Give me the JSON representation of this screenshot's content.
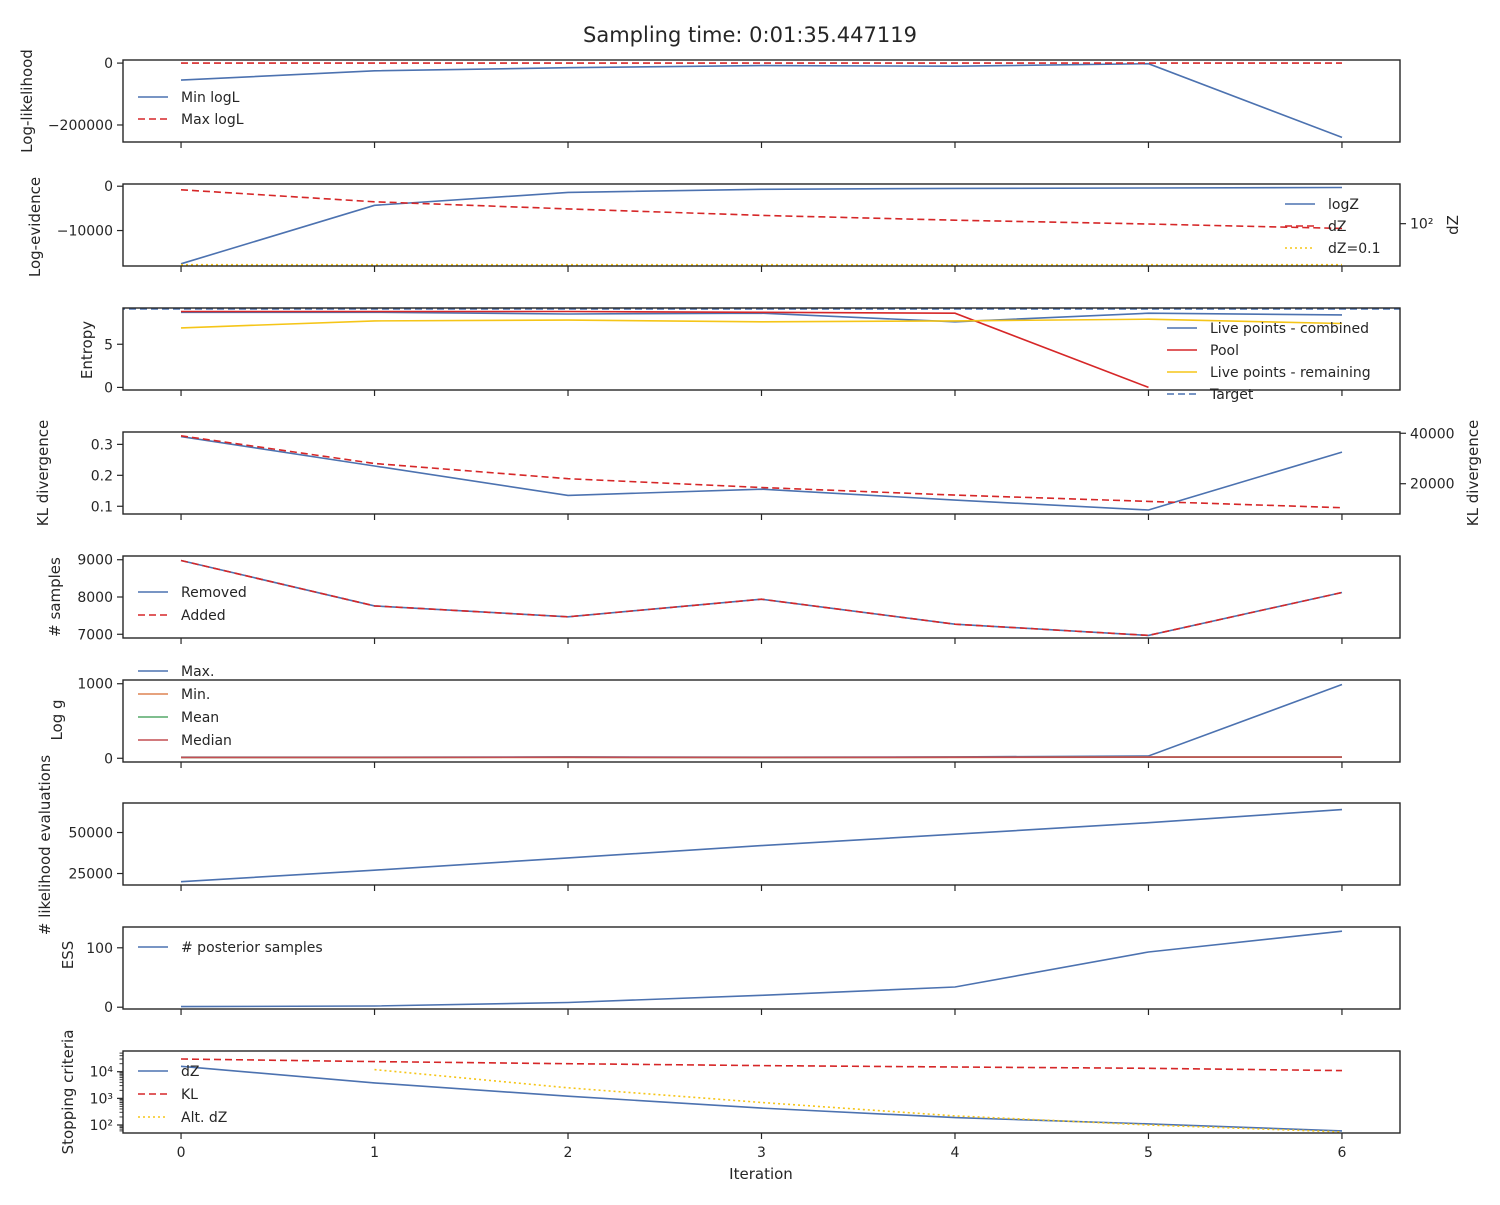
{
  "title": "Sampling time: 0:01:35.447119",
  "colors": {
    "blue": "#4c72b0",
    "red": "#d62728",
    "gold": "#f5c518",
    "orange": "#dd8452",
    "green": "#55a868",
    "crimson": "#c44e52",
    "axes": "#262626",
    "background": "#ffffff"
  },
  "x_axis": {
    "label": "Iteration",
    "ticks": [
      0,
      1,
      2,
      3,
      4,
      5,
      6
    ],
    "range": [
      -0.3,
      6.3
    ]
  },
  "chart_data": [
    {
      "type": "line",
      "ylabel": "Log-likelihood",
      "ylim": [
        -255000,
        10000
      ],
      "yticks": [
        0,
        -200000
      ],
      "ytick_labels": [
        "0",
        "−200000"
      ],
      "x": [
        0,
        1,
        2,
        3,
        4,
        5,
        6
      ],
      "series": [
        {
          "name": "Min logL",
          "values": [
            -55000,
            -25000,
            -15000,
            -8000,
            -10000,
            -2000,
            -240000
          ],
          "color": "blue",
          "dash": "solid"
        },
        {
          "name": "Max logL",
          "values": [
            0,
            0,
            0,
            0,
            0,
            0,
            0
          ],
          "color": "red",
          "dash": "dashed"
        }
      ],
      "legend": "left"
    },
    {
      "type": "line",
      "ylabel": "Log-evidence",
      "ylim": [
        -18000,
        500
      ],
      "yticks": [
        0,
        -10000
      ],
      "ytick_labels": [
        "0",
        "−10000"
      ],
      "y2label": "dZ",
      "y2_scale": "log",
      "y2ticks": [
        100
      ],
      "y2tick_labels": [
        "10²"
      ],
      "x": [
        0,
        1,
        2,
        3,
        4,
        5,
        6
      ],
      "series": [
        {
          "name": "logZ",
          "values": [
            -17500,
            -4300,
            -1400,
            -700,
            -500,
            -400,
            -300
          ],
          "color": "blue",
          "dash": "solid",
          "axis": "left"
        },
        {
          "name": "dZ",
          "values": [
            30000,
            4000,
            1200,
            400,
            180,
            95,
            45
          ],
          "color": "red",
          "dash": "dashed",
          "axis": "right"
        },
        {
          "name": "dZ=0.1",
          "values": [
            0.1,
            0.1,
            0.1,
            0.1,
            0.1,
            0.1,
            0.1
          ],
          "color": "gold",
          "dash": "dotted",
          "axis": "right"
        }
      ],
      "legend": "right"
    },
    {
      "type": "line",
      "ylabel": "Entropy",
      "ylim": [
        -0.3,
        9.2
      ],
      "yticks": [
        0,
        5
      ],
      "ytick_labels": [
        "0",
        "5"
      ],
      "x": [
        0,
        1,
        2,
        3,
        4,
        5,
        6
      ],
      "series": [
        {
          "name": "Live points - combined",
          "values": [
            8.7,
            8.7,
            8.5,
            8.6,
            7.6,
            8.6,
            8.4
          ],
          "color": "blue",
          "dash": "solid"
        },
        {
          "name": "Pool",
          "values": [
            8.8,
            8.8,
            8.8,
            8.7,
            8.6,
            0.0,
            null
          ],
          "color": "red",
          "dash": "solid"
        },
        {
          "name": "Live points - remaining",
          "values": [
            6.9,
            7.7,
            7.8,
            7.6,
            7.7,
            7.9,
            7.4
          ],
          "color": "gold",
          "dash": "solid"
        },
        {
          "name": "Target",
          "values": [
            9.1,
            9.1,
            9.1,
            9.1,
            9.1,
            9.1,
            9.1
          ],
          "color": "blue",
          "dash": "dashed",
          "extend": true
        }
      ],
      "legend": "right"
    },
    {
      "type": "line",
      "ylabel": "KL divergence",
      "ylim": [
        0.075,
        0.34
      ],
      "yticks": [
        0.3,
        0.2,
        0.1
      ],
      "ytick_labels": [
        "0.3",
        "0.2",
        "0.1"
      ],
      "y2label": "KL divergence",
      "y2lim": [
        8000,
        40500
      ],
      "y2ticks": [
        40000,
        20000
      ],
      "y2tick_labels": [
        "40000",
        "20000"
      ],
      "x": [
        0,
        1,
        2,
        3,
        4,
        5,
        6
      ],
      "series": [
        {
          "values": [
            0.325,
            0.23,
            0.135,
            0.155,
            0.12,
            0.088,
            0.275
          ],
          "color": "blue",
          "dash": "solid",
          "axis": "left"
        },
        {
          "values": [
            39000,
            28000,
            22000,
            18500,
            15500,
            13000,
            10500
          ],
          "color": "red",
          "dash": "dashed",
          "axis": "right"
        }
      ]
    },
    {
      "type": "line",
      "ylabel": "# samples",
      "ylim": [
        6900,
        9100
      ],
      "yticks": [
        9000,
        8000,
        7000
      ],
      "ytick_labels": [
        "9000",
        "8000",
        "7000"
      ],
      "x": [
        0,
        1,
        2,
        3,
        4,
        5,
        6
      ],
      "series": [
        {
          "name": "Removed",
          "values": [
            8980,
            7760,
            7470,
            7940,
            7270,
            6970,
            8120
          ],
          "color": "blue",
          "dash": "solid"
        },
        {
          "name": "Added",
          "values": [
            8980,
            7760,
            7470,
            7940,
            7270,
            6970,
            8120
          ],
          "color": "red",
          "dash": "dashed"
        }
      ],
      "legend": "left"
    },
    {
      "type": "line",
      "ylabel": "Log g",
      "ylim": [
        -50,
        1050
      ],
      "yticks": [
        1000,
        0
      ],
      "ytick_labels": [
        "1000",
        "0"
      ],
      "x": [
        0,
        1,
        2,
        3,
        4,
        5,
        6
      ],
      "series": [
        {
          "name": "Max.",
          "values": [
            15,
            15,
            18,
            15,
            18,
            30,
            990
          ],
          "color": "blue",
          "dash": "solid"
        },
        {
          "name": "Min.",
          "values": [
            10,
            10,
            12,
            10,
            12,
            14,
            14
          ],
          "color": "orange",
          "dash": "solid"
        },
        {
          "name": "Mean",
          "values": [
            12,
            12,
            14,
            12,
            14,
            16,
            16
          ],
          "color": "green",
          "dash": "solid"
        },
        {
          "name": "Median",
          "values": [
            12,
            12,
            14,
            12,
            14,
            16,
            16
          ],
          "color": "crimson",
          "dash": "solid"
        }
      ],
      "legend": "left"
    },
    {
      "type": "line",
      "ylabel": "# likelihood evaluations",
      "ylim": [
        18000,
        68000
      ],
      "yticks": [
        50000,
        25000
      ],
      "ytick_labels": [
        "50000",
        "25000"
      ],
      "x": [
        0,
        1,
        2,
        3,
        4,
        5,
        6
      ],
      "series": [
        {
          "values": [
            20000,
            27000,
            34500,
            42000,
            49000,
            56000,
            64000
          ],
          "color": "blue",
          "dash": "solid"
        }
      ]
    },
    {
      "type": "line",
      "ylabel": "ESS",
      "ylim": [
        -3,
        135
      ],
      "yticks": [
        100,
        0
      ],
      "ytick_labels": [
        "100",
        "0"
      ],
      "x": [
        0,
        1,
        2,
        3,
        4,
        5,
        6
      ],
      "series": [
        {
          "name": "# posterior samples",
          "values": [
            1,
            2,
            8,
            20,
            34,
            93,
            128
          ],
          "color": "blue",
          "dash": "solid"
        }
      ],
      "legend": "upper left"
    },
    {
      "type": "line",
      "ylabel": "Stopping criteria",
      "yscale": "log",
      "ylim": [
        50,
        60000
      ],
      "yticks": [
        10000,
        1000,
        100
      ],
      "ytick_labels": [
        "10⁴",
        "10³",
        "10²"
      ],
      "x": [
        0,
        1,
        2,
        3,
        4,
        5,
        6
      ],
      "series": [
        {
          "name": "dZ",
          "values": [
            16000,
            3800,
            1200,
            430,
            190,
            110,
            60
          ],
          "color": "blue",
          "dash": "solid"
        },
        {
          "name": "KL",
          "values": [
            30000,
            24000,
            20000,
            17000,
            15000,
            13500,
            11000
          ],
          "color": "red",
          "dash": "dashed"
        },
        {
          "name": "Alt. dZ",
          "values": [
            null,
            12000,
            2500,
            700,
            220,
            100,
            55
          ],
          "color": "gold",
          "dash": "dotted"
        }
      ],
      "legend": "left"
    }
  ]
}
